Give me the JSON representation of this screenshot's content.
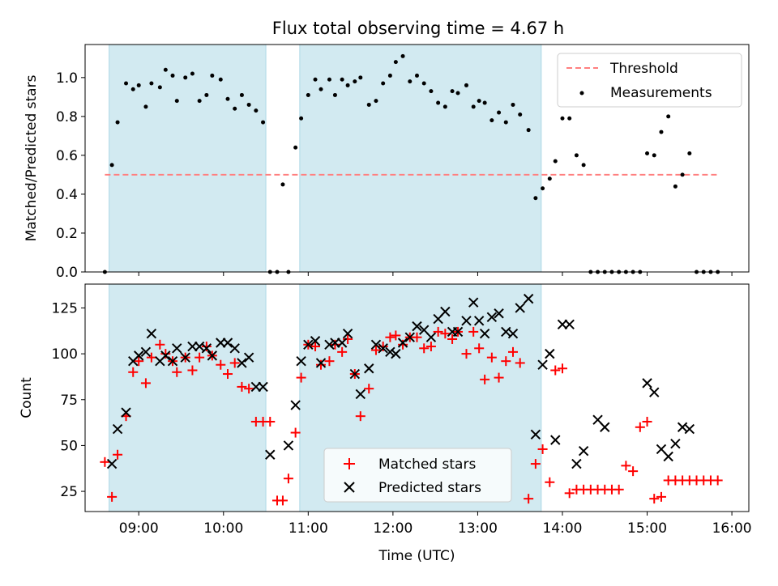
{
  "chart_data": [
    {
      "type": "scatter",
      "title": "Flux total observing time = 4.67 h",
      "ylabel": "Matched/Predicted stars",
      "xlabel": "",
      "xlim": [
        "08:22",
        "16:12"
      ],
      "ylim": [
        0,
        1.17
      ],
      "yticks": [
        "0.0",
        "0.2",
        "0.4",
        "0.6",
        "0.8",
        "1.0"
      ],
      "shaded_intervals": [
        [
          "08:39",
          "10:30"
        ],
        [
          "10:54",
          "13:45"
        ]
      ],
      "threshold": {
        "label": "Threshold",
        "y": 0.5,
        "x_range": [
          "08:36",
          "15:51"
        ],
        "color": "#ff7f7f"
      },
      "legend": {
        "position": "upper right",
        "entries": [
          "Threshold",
          "Measurements"
        ]
      },
      "series": [
        {
          "name": "Measurements",
          "color": "#000000",
          "x": [
            "08:36",
            "08:41",
            "08:45",
            "08:51",
            "08:56",
            "09:00",
            "09:05",
            "09:09",
            "09:15",
            "09:19",
            "09:24",
            "09:27",
            "09:33",
            "09:38",
            "09:43",
            "09:48",
            "09:52",
            "09:58",
            "10:03",
            "10:08",
            "10:13",
            "10:18",
            "10:23",
            "10:28",
            "10:33",
            "10:38",
            "10:42",
            "10:46",
            "10:51",
            "10:55",
            "11:00",
            "11:05",
            "11:09",
            "11:15",
            "11:19",
            "11:24",
            "11:28",
            "11:33",
            "11:37",
            "11:43",
            "11:48",
            "11:53",
            "11:58",
            "12:02",
            "12:07",
            "12:12",
            "12:17",
            "12:22",
            "12:27",
            "12:32",
            "12:37",
            "12:42",
            "12:46",
            "12:52",
            "12:57",
            "13:01",
            "13:05",
            "13:10",
            "13:15",
            "13:20",
            "13:25",
            "13:30",
            "13:36",
            "13:41",
            "13:46",
            "13:51",
            "13:55",
            "14:00",
            "14:05",
            "14:10",
            "14:15",
            "14:20",
            "14:25",
            "14:30",
            "14:35",
            "14:40",
            "14:45",
            "14:50",
            "14:55",
            "15:00",
            "15:05",
            "15:10",
            "15:15",
            "15:20",
            "15:25",
            "15:30",
            "15:35",
            "15:40",
            "15:45",
            "15:50"
          ],
          "y": [
            0.0,
            0.55,
            0.77,
            0.97,
            0.94,
            0.96,
            0.85,
            0.97,
            0.95,
            1.04,
            1.01,
            0.88,
            1.0,
            1.02,
            0.88,
            0.91,
            1.01,
            0.99,
            0.89,
            0.84,
            0.91,
            0.86,
            0.83,
            0.77,
            0.0,
            0.0,
            0.45,
            0.0,
            0.64,
            0.79,
            0.91,
            0.99,
            0.94,
            0.99,
            0.91,
            0.99,
            0.96,
            0.98,
            1.0,
            0.86,
            0.88,
            0.97,
            1.01,
            1.08,
            1.11,
            0.98,
            1.01,
            0.97,
            0.93,
            0.87,
            0.85,
            0.93,
            0.92,
            0.96,
            0.85,
            0.88,
            0.87,
            0.78,
            0.82,
            0.77,
            0.86,
            0.81,
            0.73,
            0.38,
            0.43,
            0.48,
            0.57,
            0.79,
            0.79,
            0.6,
            0.55,
            0.0,
            0.0,
            0.0,
            0.0,
            0.0,
            0.0,
            0.0,
            0.0,
            0.61,
            0.6,
            0.72,
            0.8,
            0.44,
            0.5,
            0.61,
            0.0,
            0.0,
            0.0,
            0.0
          ]
        }
      ]
    },
    {
      "type": "scatter",
      "title": "",
      "xlabel": "Time (UTC)",
      "ylabel": "Count",
      "xlim": [
        "08:22",
        "16:12"
      ],
      "ylim": [
        14,
        138
      ],
      "xticks": [
        "09:00",
        "10:00",
        "11:00",
        "12:00",
        "13:00",
        "14:00",
        "15:00",
        "16:00"
      ],
      "yticks": [
        "25",
        "50",
        "75",
        "100",
        "125"
      ],
      "shaded_intervals": [
        [
          "08:39",
          "10:30"
        ],
        [
          "10:54",
          "13:45"
        ]
      ],
      "legend": {
        "position": "lower center",
        "entries": [
          "Matched stars",
          "Predicted stars"
        ]
      },
      "series": [
        {
          "name": "Matched stars",
          "marker": "+",
          "color": "#ff0000",
          "x": [
            "08:36",
            "08:41",
            "08:45",
            "08:51",
            "08:56",
            "09:00",
            "09:05",
            "09:09",
            "09:15",
            "09:19",
            "09:24",
            "09:27",
            "09:33",
            "09:38",
            "09:43",
            "09:48",
            "09:52",
            "09:58",
            "10:03",
            "10:08",
            "10:13",
            "10:18",
            "10:23",
            "10:28",
            "10:33",
            "10:38",
            "10:42",
            "10:46",
            "10:51",
            "10:55",
            "11:00",
            "11:05",
            "11:09",
            "11:15",
            "11:19",
            "11:24",
            "11:28",
            "11:33",
            "11:37",
            "11:43",
            "11:48",
            "11:53",
            "11:58",
            "12:02",
            "12:07",
            "12:12",
            "12:17",
            "12:22",
            "12:27",
            "12:32",
            "12:37",
            "12:42",
            "12:46",
            "12:52",
            "12:57",
            "13:01",
            "13:05",
            "13:10",
            "13:15",
            "13:20",
            "13:25",
            "13:30",
            "13:36",
            "13:41",
            "13:46",
            "13:51",
            "13:55",
            "14:00",
            "14:05",
            "14:10",
            "14:15",
            "14:20",
            "14:25",
            "14:30",
            "14:35",
            "14:40",
            "14:45",
            "14:50",
            "14:55",
            "15:00",
            "15:05",
            "15:10",
            "15:15",
            "15:20",
            "15:25",
            "15:30",
            "15:35",
            "15:40",
            "15:45",
            "15:50"
          ],
          "y": [
            41,
            22,
            45,
            66,
            90,
            96,
            84,
            98,
            105,
            100,
            96,
            90,
            98,
            91,
            98,
            104,
            99,
            94,
            89,
            95,
            82,
            81,
            63,
            63,
            63,
            20,
            20,
            32,
            57,
            87,
            105,
            104,
            94,
            96,
            105,
            101,
            108,
            89,
            66,
            81,
            102,
            104,
            109,
            110,
            105,
            109,
            109,
            103,
            104,
            112,
            111,
            108,
            112,
            100,
            112,
            103,
            86,
            98,
            87,
            96,
            101,
            95,
            21,
            40,
            48,
            30,
            91,
            92,
            24,
            26,
            26,
            26,
            26,
            26,
            26,
            26,
            39,
            36,
            60,
            63,
            21,
            22,
            31,
            31,
            31,
            31,
            31,
            31,
            31,
            31
          ]
        },
        {
          "name": "Predicted stars",
          "marker": "x",
          "color": "#000000",
          "x": [
            "08:41",
            "08:45",
            "08:51",
            "08:56",
            "09:00",
            "09:05",
            "09:09",
            "09:15",
            "09:19",
            "09:24",
            "09:27",
            "09:33",
            "09:38",
            "09:43",
            "09:48",
            "09:52",
            "09:58",
            "10:03",
            "10:08",
            "10:13",
            "10:18",
            "10:23",
            "10:28",
            "10:33",
            "10:46",
            "10:51",
            "10:55",
            "11:00",
            "11:05",
            "11:09",
            "11:15",
            "11:19",
            "11:24",
            "11:28",
            "11:33",
            "11:37",
            "11:43",
            "11:48",
            "11:53",
            "11:58",
            "12:02",
            "12:07",
            "12:12",
            "12:17",
            "12:22",
            "12:27",
            "12:32",
            "12:37",
            "12:42",
            "12:46",
            "12:52",
            "12:57",
            "13:01",
            "13:05",
            "13:10",
            "13:15",
            "13:20",
            "13:25",
            "13:30",
            "13:36",
            "13:41",
            "13:46",
            "13:51",
            "13:55",
            "14:00",
            "14:05",
            "14:10",
            "14:15",
            "14:25",
            "14:30",
            "15:00",
            "15:05",
            "15:10",
            "15:15",
            "15:20",
            "15:25",
            "15:30"
          ],
          "y": [
            40,
            59,
            68,
            96,
            99,
            101,
            111,
            96,
            99,
            96,
            103,
            98,
            104,
            104,
            103,
            99,
            106,
            106,
            103,
            95,
            98,
            82,
            82,
            45,
            50,
            72,
            96,
            105,
            107,
            95,
            105,
            106,
            106,
            111,
            89,
            78,
            92,
            105,
            103,
            101,
            100,
            106,
            109,
            115,
            113,
            109,
            119,
            123,
            112,
            112,
            118,
            128,
            118,
            111,
            120,
            122,
            112,
            111,
            125,
            130,
            56,
            94,
            100,
            53,
            116,
            116,
            40,
            47,
            64,
            60,
            84,
            79,
            48,
            44,
            51,
            60,
            59
          ]
        }
      ]
    }
  ]
}
